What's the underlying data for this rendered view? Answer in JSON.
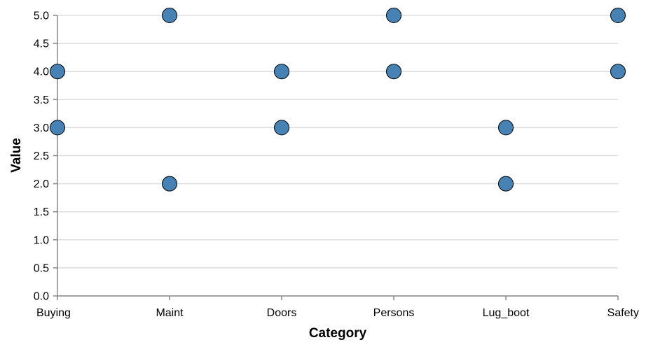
{
  "chart_data": {
    "type": "scatter",
    "xlabel": "Category",
    "ylabel": "Value",
    "categories": [
      "Buying",
      "Maint",
      "Doors",
      "Persons",
      "Lug_boot",
      "Safety"
    ],
    "y_ticks": [
      "0.0",
      "0.5",
      "1.0",
      "1.5",
      "2.0",
      "2.5",
      "3.0",
      "3.5",
      "4.0",
      "4.5",
      "5.0"
    ],
    "ylim": [
      0,
      5
    ],
    "grid": true,
    "point_color": "#4682b4",
    "points": [
      {
        "x": "Buying",
        "y": 4
      },
      {
        "x": "Buying",
        "y": 3
      },
      {
        "x": "Maint",
        "y": 5
      },
      {
        "x": "Maint",
        "y": 2
      },
      {
        "x": "Doors",
        "y": 4
      },
      {
        "x": "Doors",
        "y": 3
      },
      {
        "x": "Persons",
        "y": 5
      },
      {
        "x": "Persons",
        "y": 4
      },
      {
        "x": "Lug_boot",
        "y": 3
      },
      {
        "x": "Lug_boot",
        "y": 2
      },
      {
        "x": "Safety",
        "y": 5
      },
      {
        "x": "Safety",
        "y": 4
      }
    ]
  }
}
